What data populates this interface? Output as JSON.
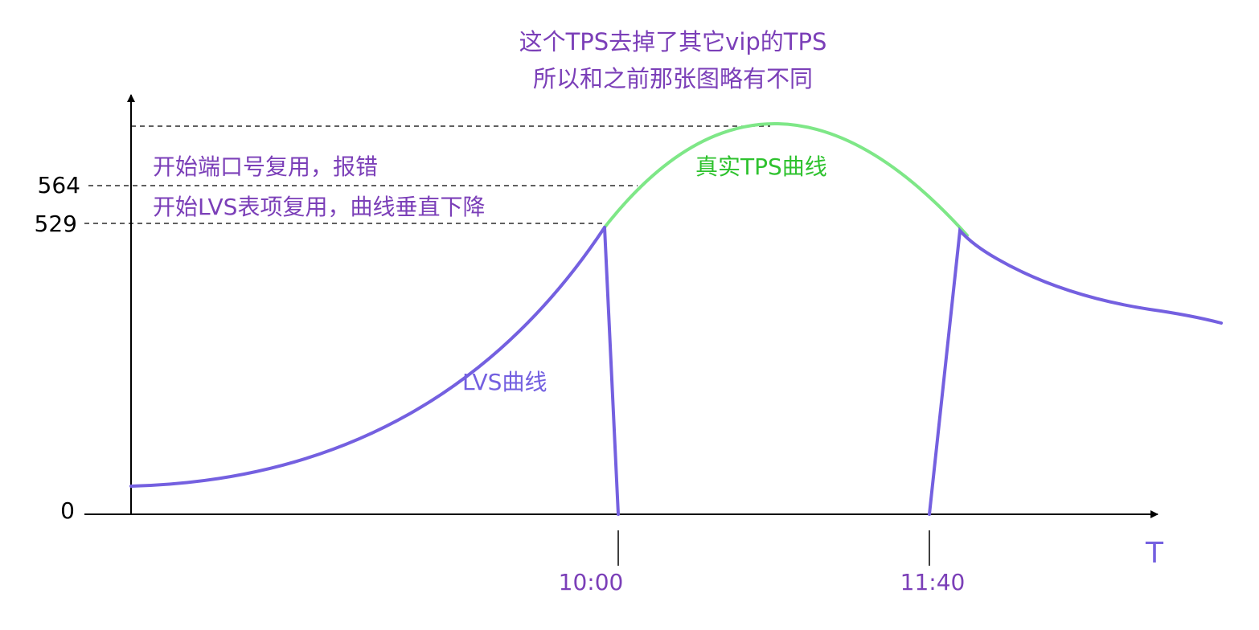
{
  "colors": {
    "lvs": "#7460e0",
    "real": "#7ee787",
    "purple_text": "#7b3fb8",
    "green_text": "#2ec22e",
    "axis": "#000000"
  },
  "note": {
    "line1": "这个TPS去掉了其它vip的TPS",
    "line2": "所以和之前那张图略有不同"
  },
  "annotations": {
    "port_reuse": "开始端口号复用，报错",
    "lvs_reuse": "开始LVS表项复用，曲线垂直下降",
    "real_curve": "真实TPS曲线",
    "lvs_curve": "LVS曲线"
  },
  "axis": {
    "y_ticks": [
      "564",
      "529",
      "0"
    ],
    "x_ticks": [
      "10:00",
      "11:40"
    ],
    "x_label": "T"
  }
}
